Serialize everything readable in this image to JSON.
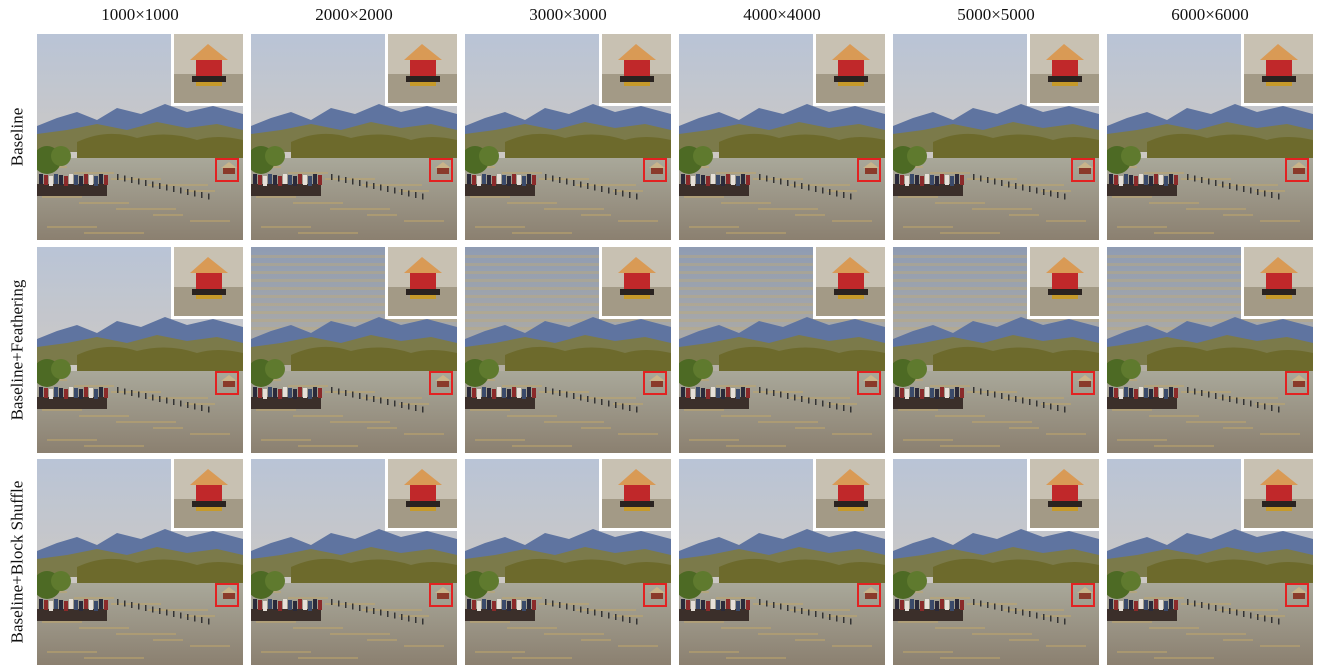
{
  "figure": {
    "columns": [
      {
        "label": "1000×1000"
      },
      {
        "label": "2000×2000"
      },
      {
        "label": "3000×3000"
      },
      {
        "label": "4000×4000"
      },
      {
        "label": "5000×5000"
      },
      {
        "label": "6000×6000"
      }
    ],
    "rows": [
      {
        "label": "Baseline"
      },
      {
        "label": "Baseline+Feathering"
      },
      {
        "label": "Baseline+Block Shuffle"
      }
    ],
    "colors": {
      "highlight_box": "#e22222",
      "inset_border": "#ffffff"
    }
  }
}
